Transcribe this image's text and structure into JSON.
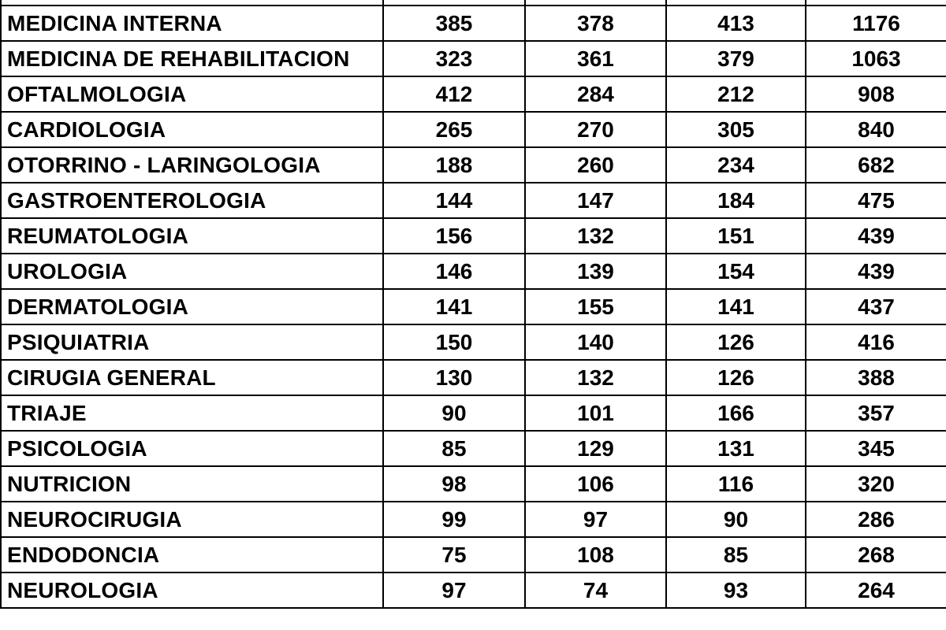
{
  "table": {
    "rows": [
      {
        "specialty": "MEDICINA INTERNA",
        "values": [
          "385",
          "378",
          "413",
          "1176"
        ]
      },
      {
        "specialty": "MEDICINA DE REHABILITACION",
        "values": [
          "323",
          "361",
          "379",
          "1063"
        ]
      },
      {
        "specialty": "OFTALMOLOGIA",
        "values": [
          "412",
          "284",
          "212",
          "908"
        ]
      },
      {
        "specialty": "CARDIOLOGIA",
        "values": [
          "265",
          "270",
          "305",
          "840"
        ]
      },
      {
        "specialty": "OTORRINO - LARINGOLOGIA",
        "values": [
          "188",
          "260",
          "234",
          "682"
        ]
      },
      {
        "specialty": "GASTROENTEROLOGIA",
        "values": [
          "144",
          "147",
          "184",
          "475"
        ]
      },
      {
        "specialty": "REUMATOLOGIA",
        "values": [
          "156",
          "132",
          "151",
          "439"
        ]
      },
      {
        "specialty": "UROLOGIA",
        "values": [
          "146",
          "139",
          "154",
          "439"
        ]
      },
      {
        "specialty": "DERMATOLOGIA",
        "values": [
          "141",
          "155",
          "141",
          "437"
        ]
      },
      {
        "specialty": "PSIQUIATRIA",
        "values": [
          "150",
          "140",
          "126",
          "416"
        ]
      },
      {
        "specialty": "CIRUGIA GENERAL",
        "values": [
          "130",
          "132",
          "126",
          "388"
        ]
      },
      {
        "specialty": "TRIAJE",
        "values": [
          "90",
          "101",
          "166",
          "357"
        ]
      },
      {
        "specialty": "PSICOLOGIA",
        "values": [
          "85",
          "129",
          "131",
          "345"
        ]
      },
      {
        "specialty": "NUTRICION",
        "values": [
          "98",
          "106",
          "116",
          "320"
        ]
      },
      {
        "specialty": "NEUROCIRUGIA",
        "values": [
          "99",
          "97",
          "90",
          "286"
        ]
      },
      {
        "specialty": "ENDODONCIA",
        "values": [
          "75",
          "108",
          "85",
          "268"
        ]
      },
      {
        "specialty": "NEUROLOGIA",
        "values": [
          "97",
          "74",
          "93",
          "264"
        ]
      }
    ]
  }
}
